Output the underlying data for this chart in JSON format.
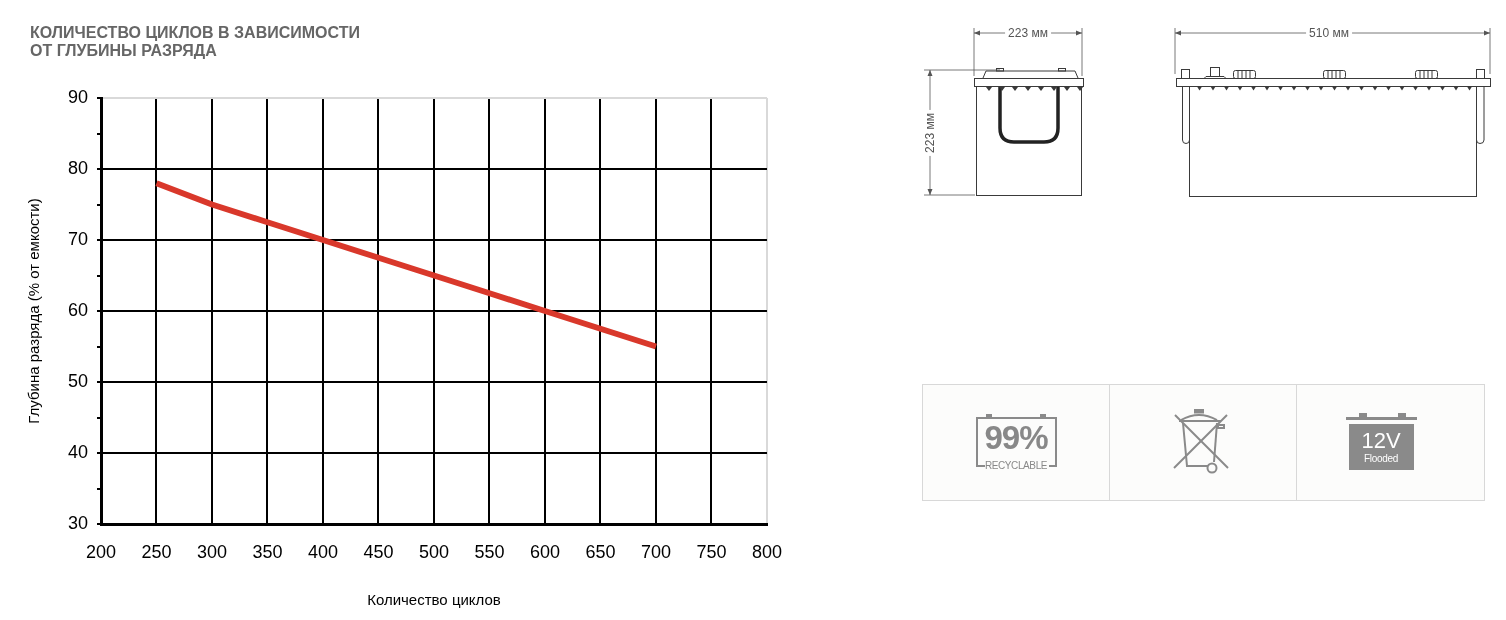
{
  "chart_data": {
    "type": "line",
    "title": "КОЛИЧЕСТВО ЦИКЛОВ В ЗАВИСИМОСТИ ОТ ГЛУБИНЫ РАЗРЯДА",
    "xlabel": "Количество циклов",
    "ylabel": "Глубина разряда (% от емкости)",
    "x": [
      250,
      300,
      350,
      400,
      450,
      500,
      550,
      600,
      650,
      700
    ],
    "series": [
      {
        "color": "#d9382b",
        "values": [
          78,
          75,
          72.5,
          70,
          67.5,
          65,
          62.5,
          60,
          57.5,
          55
        ]
      }
    ],
    "xlim": [
      200,
      800
    ],
    "xticks": [
      200,
      250,
      300,
      350,
      400,
      450,
      500,
      550,
      600,
      650,
      700,
      750,
      800
    ],
    "ylim": [
      30,
      90
    ],
    "yticks": [
      30,
      {
        "value": 35,
        "label": null
      },
      40,
      {
        "value": 45,
        "label": null
      },
      50,
      {
        "value": 55,
        "label": null
      },
      60,
      {
        "value": 65,
        "label": null
      },
      70,
      {
        "value": 75,
        "label": null
      },
      80,
      {
        "value": 85,
        "label": null
      },
      90
    ],
    "grid": true,
    "line_style": "solid",
    "annotations": [
      "223 мм",
      "223 мм",
      "510 мм",
      "99%",
      "RECYCLABLE",
      "12V",
      "Flooded"
    ]
  }
}
